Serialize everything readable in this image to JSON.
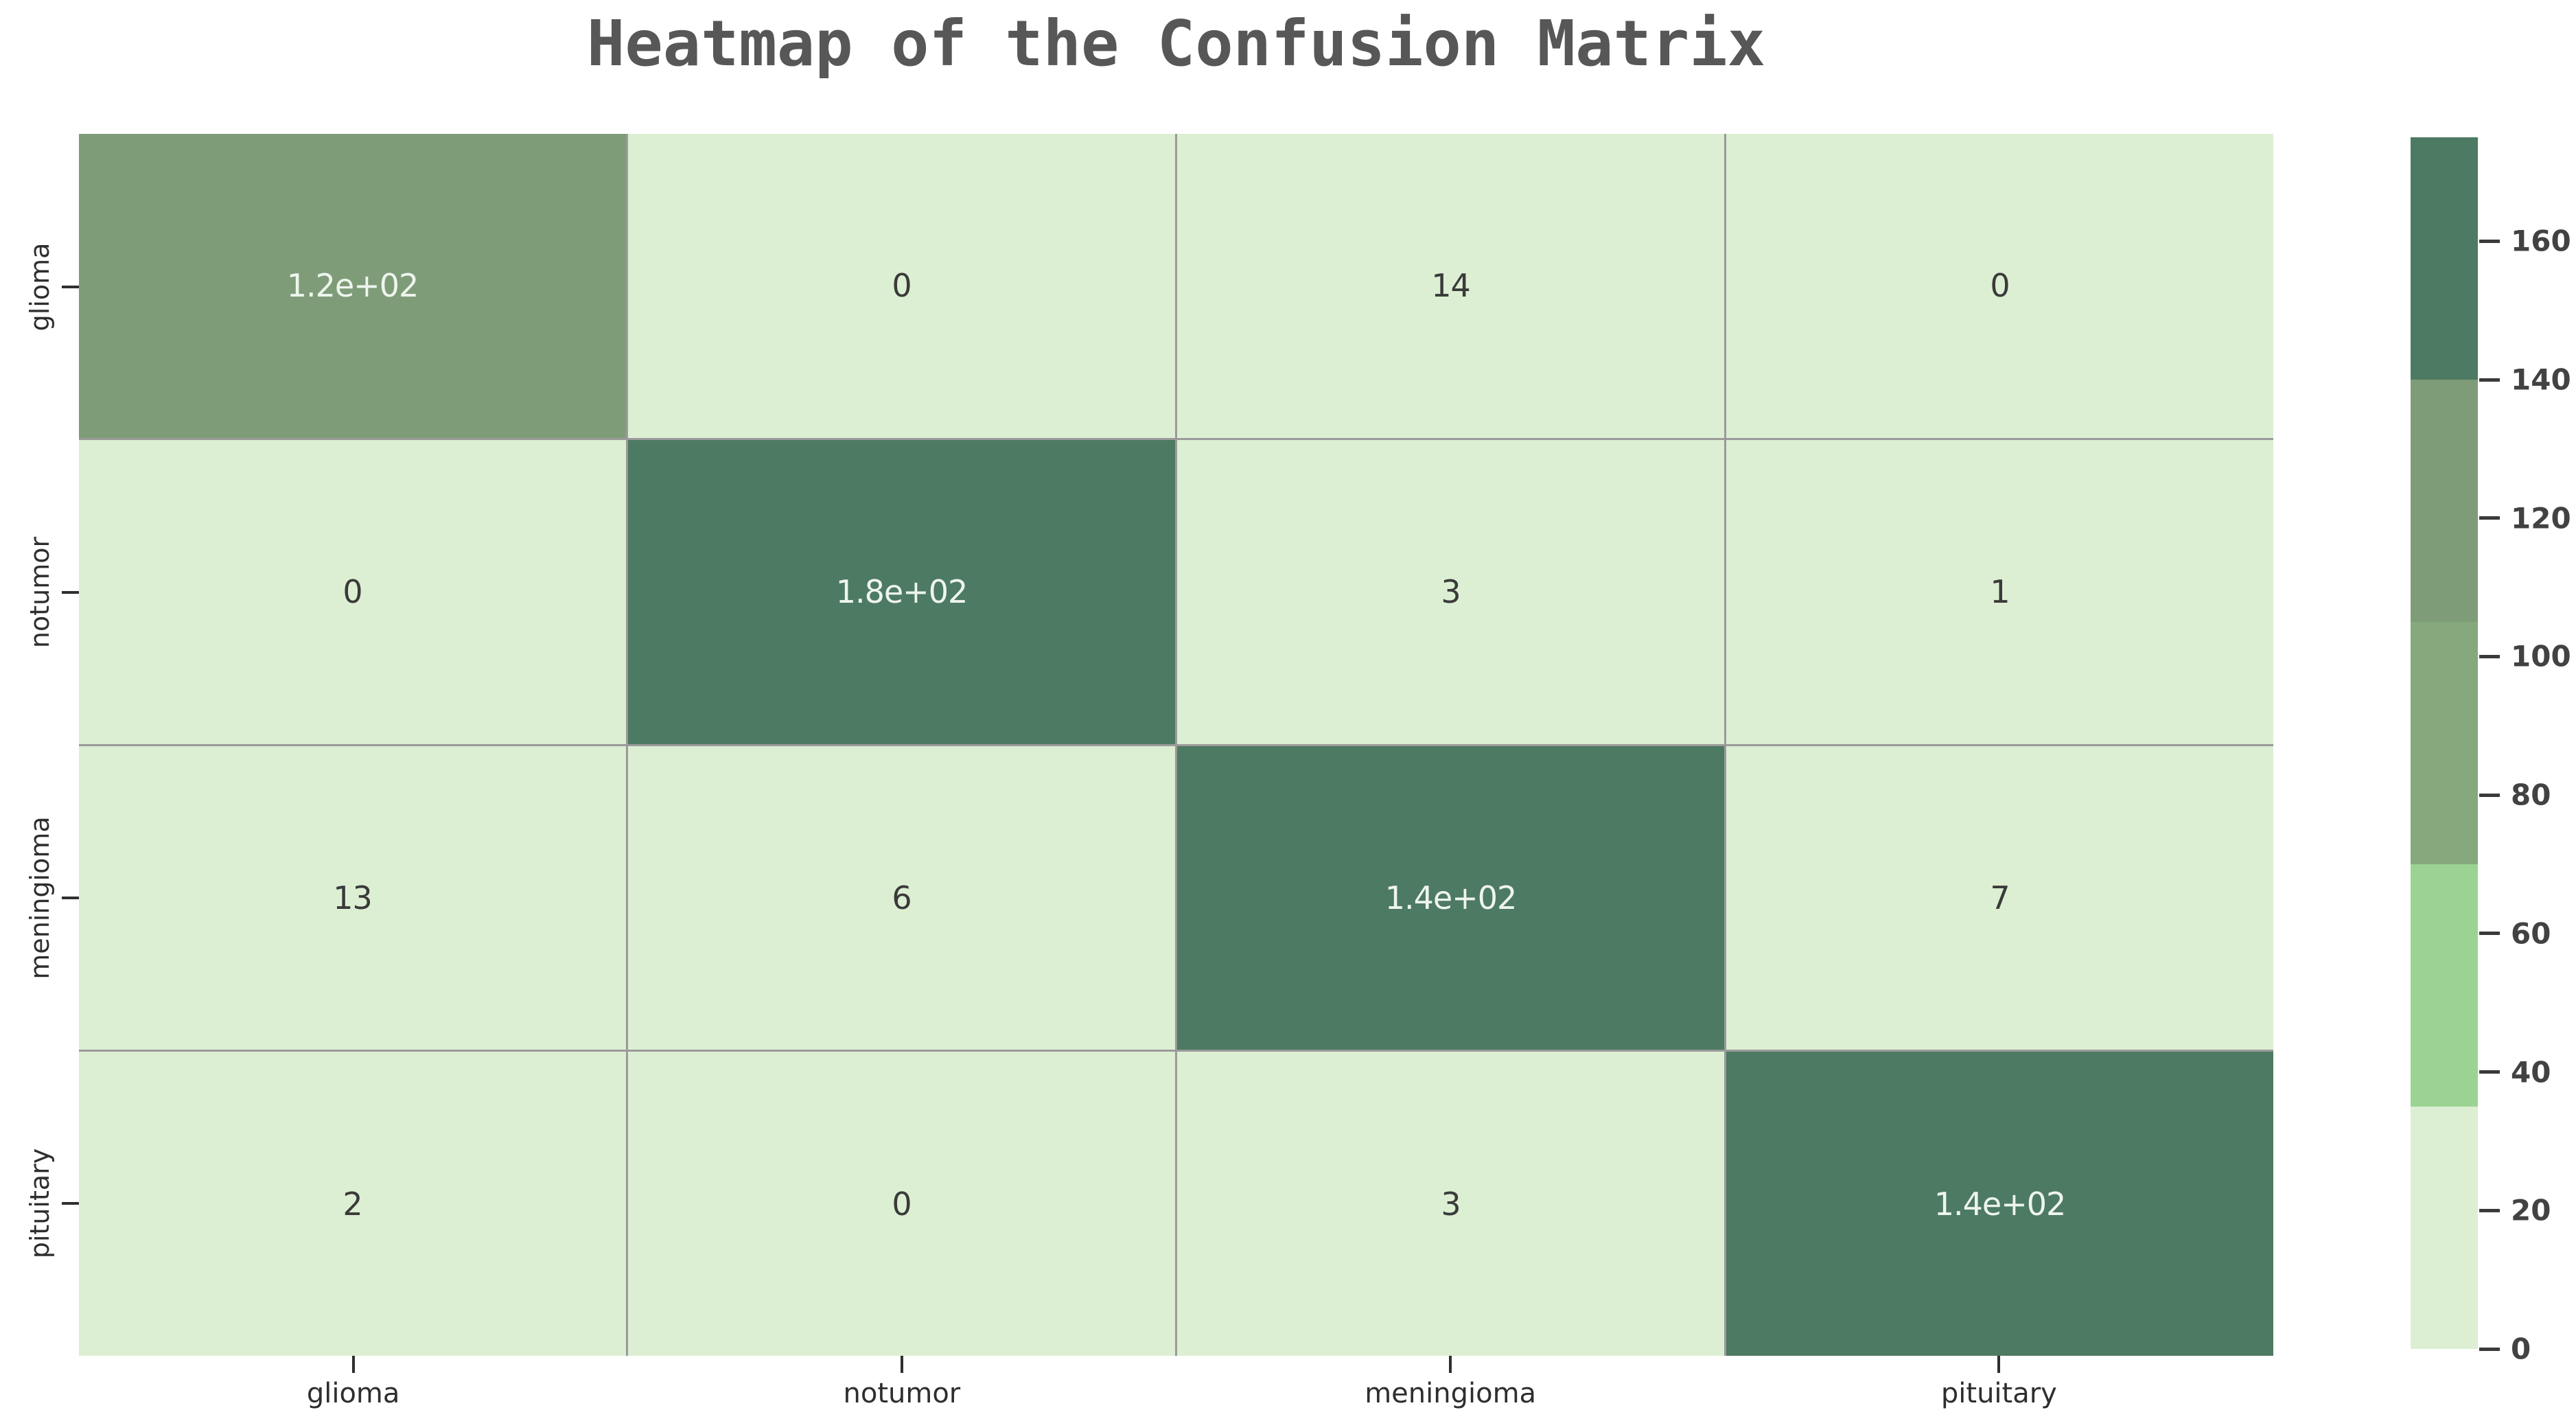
{
  "title": "Heatmap of the Confusion Matrix",
  "chart_data": {
    "type": "heatmap",
    "title": "Heatmap of the Confusion Matrix",
    "x_categories": [
      "glioma",
      "notumor",
      "meningioma",
      "pituitary"
    ],
    "y_categories": [
      "glioma",
      "notumor",
      "meningioma",
      "pituitary"
    ],
    "values": [
      [
        120,
        0,
        14,
        0
      ],
      [
        0,
        180,
        3,
        1
      ],
      [
        13,
        6,
        140,
        7
      ],
      [
        2,
        0,
        3,
        140
      ]
    ],
    "cell_labels": [
      [
        "1.2e+02",
        "0",
        "14",
        "0"
      ],
      [
        "0",
        "1.8e+02",
        "3",
        "1"
      ],
      [
        "13",
        "6",
        "1.4e+02",
        "7"
      ],
      [
        "2",
        "0",
        "3",
        "1.4e+02"
      ]
    ],
    "colorbar": {
      "ticks": [
        0,
        20,
        40,
        60,
        80,
        100,
        120,
        140,
        160
      ],
      "vmin": 0,
      "vmax": 175,
      "bin_edges": [
        0,
        35,
        70,
        105,
        140,
        175
      ],
      "bin_colors": [
        "#ddefd3",
        "#9bd492",
        "#85a87c",
        "#7f9c78",
        "#4d7a62"
      ],
      "position": "right"
    },
    "grid": true,
    "gridline_color": "#9a9a9a",
    "annotation_light_color": "#eef5ee",
    "annotation_dark_color": "#3a3a3a",
    "title_color": "#575757",
    "tick_label_color": "#2e2e2e"
  }
}
